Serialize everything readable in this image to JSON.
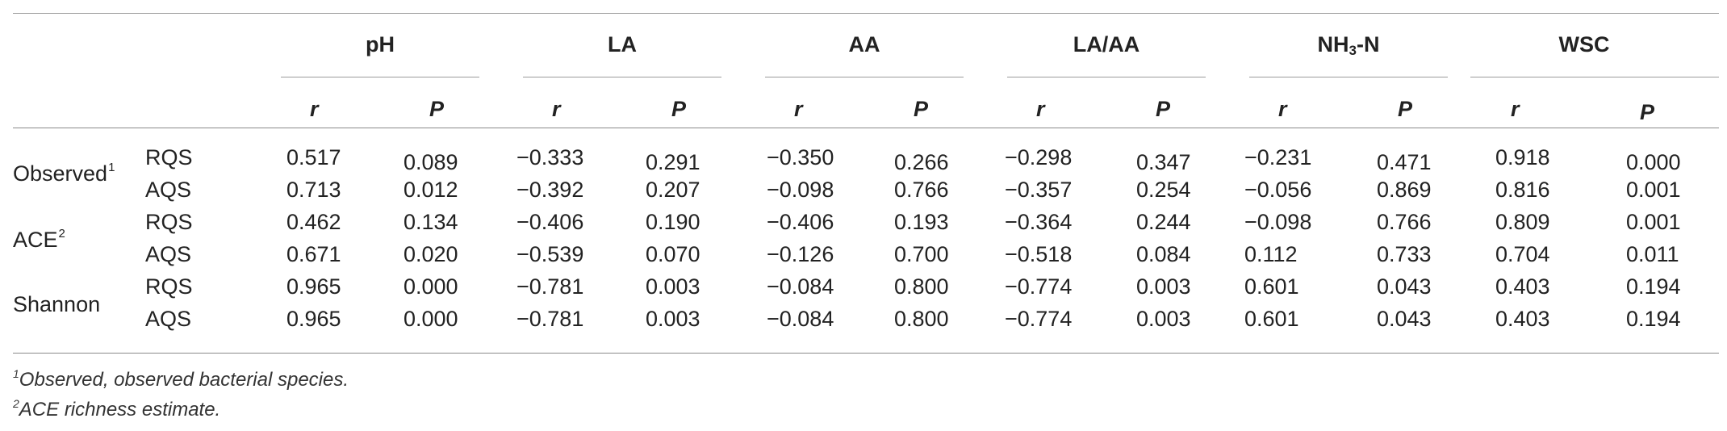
{
  "columns": [
    {
      "label": "pH",
      "sub": null
    },
    {
      "label": "LA",
      "sub": null
    },
    {
      "label": "AA",
      "sub": null
    },
    {
      "label": "LA/AA",
      "sub": null
    },
    {
      "label": "NH",
      "sub": "3",
      "suffix": "-N"
    },
    {
      "label": "WSC",
      "sub": null
    }
  ],
  "subheaders": {
    "r": "r",
    "p": "P"
  },
  "row_groups": [
    {
      "label": "Observed",
      "sup": "1"
    },
    {
      "label": "ACE",
      "sup": "2"
    },
    {
      "label": "Shannon",
      "sup": ""
    }
  ],
  "rows": [
    {
      "group": "RQS",
      "values": [
        "0.517",
        "0.089",
        "−0.333",
        "0.291",
        "−0.350",
        "0.266",
        "−0.298",
        "0.347",
        "−0.231",
        "0.471",
        "0.918",
        "0.000"
      ]
    },
    {
      "group": "AQS",
      "values": [
        "0.713",
        "0.012",
        "−0.392",
        "0.207",
        "−0.098",
        "0.766",
        "−0.357",
        "0.254",
        "−0.056",
        "0.869",
        "0.816",
        "0.001"
      ]
    },
    {
      "group": "RQS",
      "values": [
        "0.462",
        "0.134",
        "−0.406",
        "0.190",
        "−0.406",
        "0.193",
        "−0.364",
        "0.244",
        "−0.098",
        "0.766",
        "0.809",
        "0.001"
      ]
    },
    {
      "group": "AQS",
      "values": [
        "0.671",
        "0.020",
        "−0.539",
        "0.070",
        "−0.126",
        "0.700",
        "−0.518",
        "0.084",
        "0.112",
        "0.733",
        "0.704",
        "0.011"
      ]
    },
    {
      "group": "RQS",
      "values": [
        "0.965",
        "0.000",
        "−0.781",
        "0.003",
        "−0.084",
        "0.800",
        "−0.774",
        "0.003",
        "0.601",
        "0.043",
        "0.403",
        "0.194"
      ]
    },
    {
      "group": "AQS",
      "values": [
        "0.965",
        "0.000",
        "−0.781",
        "0.003",
        "−0.084",
        "0.800",
        "−0.774",
        "0.003",
        "0.601",
        "0.043",
        "0.403",
        "0.194"
      ]
    }
  ],
  "footnotes": [
    {
      "sup": "1",
      "text": "Observed, observed bacterial species."
    },
    {
      "sup": "2",
      "text": "ACE richness estimate."
    }
  ]
}
